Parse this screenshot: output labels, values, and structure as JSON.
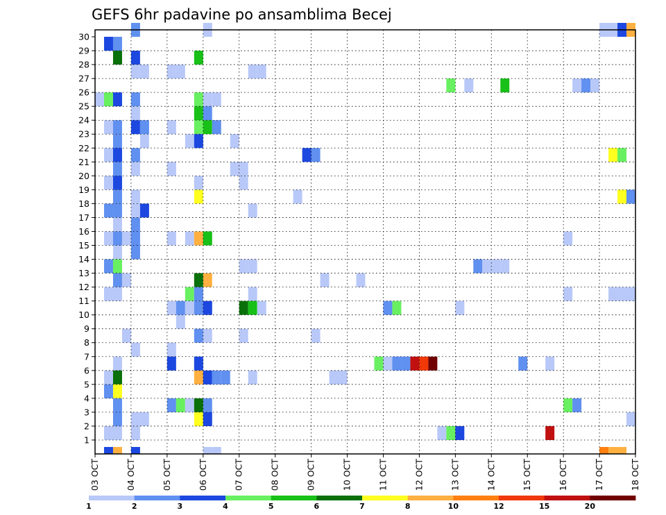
{
  "chart_data": {
    "type": "heatmap",
    "title": "GEFS 6hr padavine po ansamblima Becej",
    "xlabel": "",
    "ylabel": "",
    "x_ticks": [
      "03 OCT",
      "04 OCT",
      "05 OCT",
      "06 OCT",
      "07 OCT",
      "08 OCT",
      "09 OCT",
      "10 OCT",
      "11 OCT",
      "12 OCT",
      "13 OCT",
      "14 OCT",
      "15 OCT",
      "16 OCT",
      "17 OCT",
      "18 OCT"
    ],
    "y_ticks": [
      1,
      2,
      3,
      4,
      5,
      6,
      7,
      8,
      9,
      10,
      11,
      12,
      13,
      14,
      15,
      16,
      17,
      18,
      19,
      20,
      21,
      22,
      23,
      24,
      25,
      26,
      27,
      28,
      29,
      30
    ],
    "x_range_steps": [
      0,
      60
    ],
    "y_range_members": [
      0,
      30
    ],
    "grid": true,
    "colorbar": {
      "boundaries": [
        "1",
        "2",
        "3",
        "4",
        "5",
        "6",
        "7",
        "8",
        "10",
        "12",
        "15",
        "20"
      ],
      "colors": [
        "#b8c8f8",
        "#6090f0",
        "#1c48e0",
        "#68f060",
        "#18c018",
        "#0a700a",
        "#ffff20",
        "#ffb040",
        "#ff8010",
        "#f03808",
        "#c01010",
        "#700000"
      ]
    },
    "cell_colors": {
      "a": "#b8c8f8",
      "b": "#6090f0",
      "c": "#1c48e0",
      "d": "#68f060",
      "e": "#18c018",
      "f": "#0a700a",
      "g": "#ffff20",
      "h": "#ffb040",
      "i": "#ff8010",
      "j": "#f03808",
      "k": "#c01010",
      "l": "#700000"
    },
    "cells": [
      [
        30,
        4,
        "b"
      ],
      [
        30,
        12,
        "a"
      ],
      [
        30,
        56,
        "a"
      ],
      [
        30,
        57,
        "a"
      ],
      [
        30,
        58,
        "c"
      ],
      [
        30,
        59,
        "h"
      ],
      [
        29,
        1,
        "c"
      ],
      [
        29,
        2,
        "b"
      ],
      [
        28,
        2,
        "f"
      ],
      [
        28,
        4,
        "c"
      ],
      [
        28,
        11,
        "e"
      ],
      [
        27,
        4,
        "a"
      ],
      [
        27,
        5,
        "a"
      ],
      [
        27,
        8,
        "a"
      ],
      [
        27,
        9,
        "a"
      ],
      [
        27,
        17,
        "a"
      ],
      [
        27,
        18,
        "a"
      ],
      [
        26,
        39,
        "d"
      ],
      [
        26,
        41,
        "a"
      ],
      [
        26,
        45,
        "e"
      ],
      [
        26,
        53,
        "a"
      ],
      [
        26,
        54,
        "b"
      ],
      [
        26,
        55,
        "a"
      ],
      [
        25,
        0,
        "a"
      ],
      [
        25,
        1,
        "d"
      ],
      [
        25,
        2,
        "c"
      ],
      [
        25,
        4,
        "b"
      ],
      [
        25,
        11,
        "d"
      ],
      [
        25,
        12,
        "a"
      ],
      [
        25,
        13,
        "a"
      ],
      [
        24,
        4,
        "a"
      ],
      [
        24,
        11,
        "e"
      ],
      [
        24,
        12,
        "b"
      ],
      [
        23,
        1,
        "a"
      ],
      [
        23,
        2,
        "b"
      ],
      [
        23,
        4,
        "c"
      ],
      [
        23,
        5,
        "b"
      ],
      [
        23,
        8,
        "a"
      ],
      [
        23,
        11,
        "d"
      ],
      [
        23,
        12,
        "e"
      ],
      [
        23,
        13,
        "b"
      ],
      [
        22,
        2,
        "b"
      ],
      [
        22,
        5,
        "a"
      ],
      [
        22,
        10,
        "a"
      ],
      [
        22,
        11,
        "c"
      ],
      [
        22,
        15,
        "a"
      ],
      [
        21,
        1,
        "a"
      ],
      [
        21,
        2,
        "c"
      ],
      [
        21,
        4,
        "b"
      ],
      [
        21,
        23,
        "c"
      ],
      [
        21,
        24,
        "b"
      ],
      [
        21,
        57,
        "g"
      ],
      [
        21,
        58,
        "d"
      ],
      [
        20,
        2,
        "b"
      ],
      [
        20,
        4,
        "a"
      ],
      [
        20,
        8,
        "a"
      ],
      [
        20,
        15,
        "a"
      ],
      [
        20,
        16,
        "a"
      ],
      [
        19,
        1,
        "a"
      ],
      [
        19,
        2,
        "c"
      ],
      [
        19,
        11,
        "a"
      ],
      [
        19,
        16,
        "a"
      ],
      [
        18,
        2,
        "b"
      ],
      [
        18,
        4,
        "a"
      ],
      [
        18,
        11,
        "g"
      ],
      [
        18,
        22,
        "a"
      ],
      [
        18,
        58,
        "g"
      ],
      [
        18,
        59,
        "b"
      ],
      [
        17,
        1,
        "b"
      ],
      [
        17,
        2,
        "b"
      ],
      [
        17,
        4,
        "a"
      ],
      [
        17,
        5,
        "c"
      ],
      [
        17,
        17,
        "a"
      ],
      [
        16,
        2,
        "a"
      ],
      [
        16,
        4,
        "b"
      ],
      [
        15,
        1,
        "a"
      ],
      [
        15,
        2,
        "b"
      ],
      [
        15,
        3,
        "a"
      ],
      [
        15,
        4,
        "b"
      ],
      [
        15,
        8,
        "a"
      ],
      [
        15,
        10,
        "a"
      ],
      [
        15,
        11,
        "h"
      ],
      [
        15,
        12,
        "e"
      ],
      [
        15,
        52,
        "a"
      ],
      [
        14,
        2,
        "a"
      ],
      [
        14,
        4,
        "b"
      ],
      [
        13,
        1,
        "b"
      ],
      [
        13,
        2,
        "d"
      ],
      [
        13,
        16,
        "a"
      ],
      [
        13,
        17,
        "a"
      ],
      [
        13,
        42,
        "b"
      ],
      [
        13,
        43,
        "a"
      ],
      [
        13,
        44,
        "a"
      ],
      [
        13,
        45,
        "a"
      ],
      [
        12,
        2,
        "b"
      ],
      [
        12,
        3,
        "a"
      ],
      [
        12,
        11,
        "f"
      ],
      [
        12,
        12,
        "h"
      ],
      [
        12,
        25,
        "a"
      ],
      [
        12,
        29,
        "a"
      ],
      [
        11,
        1,
        "a"
      ],
      [
        11,
        2,
        "a"
      ],
      [
        11,
        10,
        "d"
      ],
      [
        11,
        11,
        "b"
      ],
      [
        11,
        17,
        "a"
      ],
      [
        11,
        52,
        "a"
      ],
      [
        11,
        57,
        "a"
      ],
      [
        11,
        58,
        "a"
      ],
      [
        11,
        59,
        "a"
      ],
      [
        10,
        8,
        "a"
      ],
      [
        10,
        9,
        "b"
      ],
      [
        10,
        10,
        "a"
      ],
      [
        10,
        11,
        "b"
      ],
      [
        10,
        12,
        "c"
      ],
      [
        10,
        16,
        "f"
      ],
      [
        10,
        17,
        "e"
      ],
      [
        10,
        18,
        "a"
      ],
      [
        10,
        32,
        "b"
      ],
      [
        10,
        33,
        "d"
      ],
      [
        10,
        40,
        "a"
      ],
      [
        9,
        9,
        "a"
      ],
      [
        8,
        3,
        "a"
      ],
      [
        8,
        11,
        "b"
      ],
      [
        8,
        12,
        "a"
      ],
      [
        8,
        16,
        "a"
      ],
      [
        8,
        24,
        "a"
      ],
      [
        7,
        4,
        "a"
      ],
      [
        7,
        8,
        "a"
      ],
      [
        6,
        2,
        "a"
      ],
      [
        6,
        8,
        "c"
      ],
      [
        6,
        11,
        "c"
      ],
      [
        6,
        31,
        "d"
      ],
      [
        6,
        32,
        "a"
      ],
      [
        6,
        33,
        "b"
      ],
      [
        6,
        34,
        "b"
      ],
      [
        6,
        35,
        "k"
      ],
      [
        6,
        36,
        "j"
      ],
      [
        6,
        37,
        "l"
      ],
      [
        6,
        47,
        "b"
      ],
      [
        6,
        50,
        "a"
      ],
      [
        5,
        1,
        "a"
      ],
      [
        5,
        2,
        "f"
      ],
      [
        5,
        11,
        "h"
      ],
      [
        5,
        12,
        "c"
      ],
      [
        5,
        13,
        "b"
      ],
      [
        5,
        14,
        "b"
      ],
      [
        5,
        17,
        "a"
      ],
      [
        5,
        26,
        "a"
      ],
      [
        5,
        27,
        "a"
      ],
      [
        4,
        1,
        "b"
      ],
      [
        4,
        2,
        "g"
      ],
      [
        3,
        2,
        "b"
      ],
      [
        3,
        8,
        "b"
      ],
      [
        3,
        9,
        "d"
      ],
      [
        3,
        10,
        "a"
      ],
      [
        3,
        11,
        "f"
      ],
      [
        3,
        12,
        "b"
      ],
      [
        3,
        52,
        "d"
      ],
      [
        3,
        53,
        "b"
      ],
      [
        2,
        2,
        "b"
      ],
      [
        2,
        4,
        "a"
      ],
      [
        2,
        5,
        "a"
      ],
      [
        2,
        11,
        "g"
      ],
      [
        2,
        12,
        "c"
      ],
      [
        2,
        59,
        "a"
      ],
      [
        1,
        1,
        "a"
      ],
      [
        1,
        2,
        "a"
      ],
      [
        1,
        4,
        "a"
      ],
      [
        1,
        38,
        "a"
      ],
      [
        1,
        39,
        "d"
      ],
      [
        1,
        40,
        "c"
      ],
      [
        1,
        50,
        "k"
      ],
      [
        0,
        1,
        "c"
      ],
      [
        0,
        2,
        "h"
      ],
      [
        0,
        4,
        "c"
      ],
      [
        0,
        12,
        "a"
      ],
      [
        0,
        13,
        "a"
      ],
      [
        0,
        56,
        "i"
      ],
      [
        0,
        57,
        "h"
      ],
      [
        0,
        58,
        "h"
      ]
    ]
  }
}
